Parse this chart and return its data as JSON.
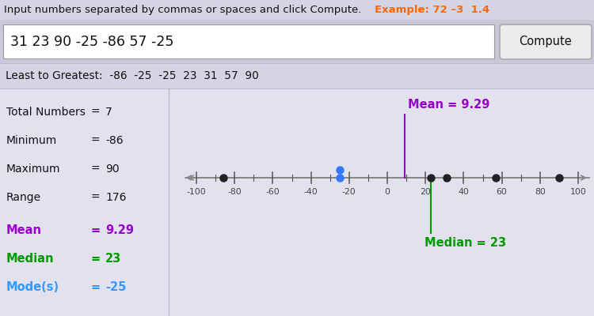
{
  "title_text": "Input numbers separated by commas or spaces and click Compute.",
  "title_example": "Example: 72 –3  1.4",
  "input_text": "31 23 90 -25 -86 57 -25",
  "button_text": "Compute",
  "sorted_label": "Least to Greatest:  -86  -25  -25  23  31  57  90",
  "stats": [
    [
      "Total Numbers",
      "7"
    ],
    [
      "Minimum",
      "-86"
    ],
    [
      "Maximum",
      "90"
    ],
    [
      "Range",
      "176"
    ]
  ],
  "mean_label": "Mean",
  "mean_value": "9.29",
  "median_label": "Median",
  "median_value": "23",
  "mode_label": "Mode(s)",
  "mode_value": "-25",
  "mean_color": "#9900CC",
  "median_color": "#009900",
  "mode_color": "#3399FF",
  "data_points": [
    -86,
    -25,
    -25,
    23,
    31,
    57,
    90
  ],
  "number_line_min": -100,
  "number_line_max": 100,
  "number_line_ticks": [
    -100,
    -80,
    -60,
    -40,
    -20,
    0,
    20,
    40,
    60,
    80,
    100
  ],
  "mean_val": 9.29,
  "median_val": 23,
  "bg_strip": "#D4D4E4",
  "bg_main": "#E2E2EE",
  "bg_input_area": "#C8C8D8",
  "bg_white": "#FFFFFF",
  "text_black": "#111111",
  "example_color": "#FF6600",
  "dot_color_black": "#222222",
  "dot_color_blue": "#3377FF",
  "nl_arrow_color": "#888888",
  "divider_color": "#BBBBCC"
}
